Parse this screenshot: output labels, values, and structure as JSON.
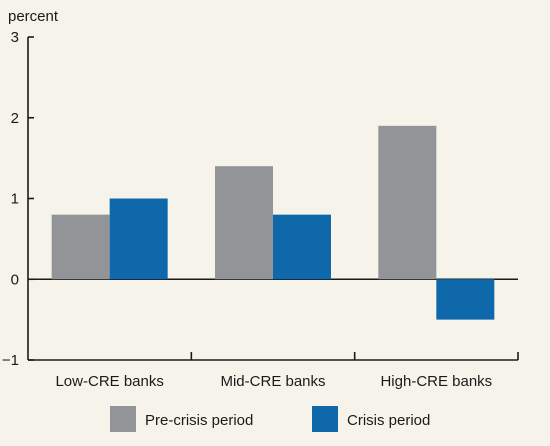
{
  "chart_data": {
    "type": "bar",
    "ylabel": "percent",
    "ylim": [
      -1,
      3
    ],
    "yticks": [
      3,
      2,
      1,
      0,
      -1
    ],
    "ytick_labels": [
      "3",
      "2",
      "1",
      "0",
      "−1"
    ],
    "categories": [
      "Low-CRE banks",
      "Mid-CRE banks",
      "High-CRE banks"
    ],
    "series": [
      {
        "name": "Pre-crisis period",
        "color": "#929497",
        "values": [
          0.8,
          1.4,
          1.9
        ]
      },
      {
        "name": "Crisis period",
        "color": "#0f68a9",
        "values": [
          1.0,
          0.8,
          -0.5
        ]
      }
    ],
    "legend": "bottom-center",
    "grid": false
  }
}
